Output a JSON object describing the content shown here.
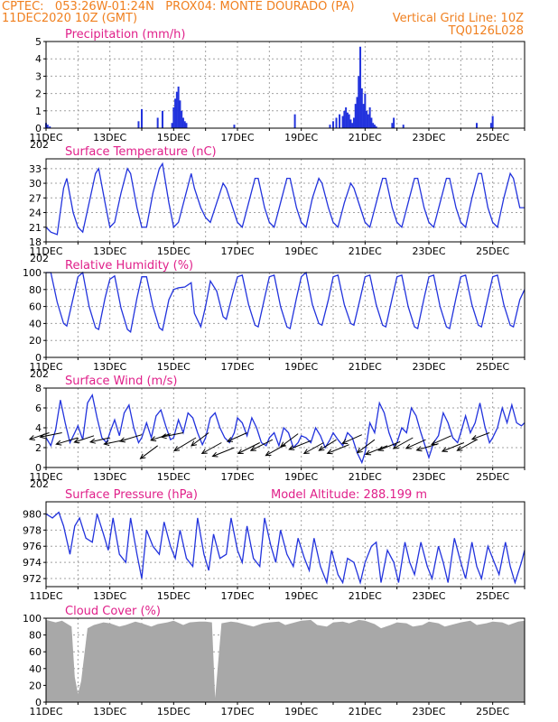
{
  "header": {
    "line1": "CPTEC:   053:26W-01:24N   PROX04: MONTE DOURADO (PA)",
    "line2_left": "11DEC2020 10Z (GMT)",
    "line2_right": "Vertical Grid Line: 10Z",
    "line3_right": "TQ0126L028"
  },
  "colors": {
    "header": "#f08020",
    "title": "#e0208a",
    "series": "#2233dd",
    "cloud": "#a8a8a8",
    "grid": "#a0a0a0"
  },
  "x_labels": [
    "11DEC",
    "13DEC",
    "15DEC",
    "17DEC",
    "19DEC",
    "21DEC",
    "23DEC",
    "25DEC"
  ],
  "year_fragment": "202",
  "chart_data": [
    {
      "type": "bar",
      "title": "Precipitation (mm/h)",
      "ylim": [
        0,
        5
      ],
      "yticks": [
        0,
        1,
        2,
        3,
        4,
        5
      ],
      "x_unit": "days since 11DEC2020 10Z (GMT)",
      "x": [
        0.0,
        0.05,
        0.12,
        2.9,
        3.0,
        3.5,
        3.65,
        3.95,
        4.0,
        4.05,
        4.1,
        4.15,
        4.2,
        4.25,
        4.3,
        4.35,
        4.4,
        5.9,
        7.8,
        8.9,
        9.0,
        9.1,
        9.2,
        9.3,
        9.35,
        9.4,
        9.45,
        9.5,
        9.55,
        9.6,
        9.65,
        9.7,
        9.75,
        9.8,
        9.85,
        9.9,
        9.95,
        10.0,
        10.05,
        10.1,
        10.15,
        10.2,
        10.25,
        10.3,
        10.35,
        10.85,
        10.9,
        11.2,
        13.5,
        13.95,
        14.0
      ],
      "values": [
        0.3,
        0.2,
        0.1,
        0.4,
        1.1,
        0.6,
        1.0,
        0.3,
        1.2,
        1.7,
        2.1,
        2.4,
        1.6,
        1.0,
        0.6,
        0.4,
        0.3,
        0.2,
        0.8,
        0.2,
        0.4,
        0.6,
        0.8,
        0.7,
        1.0,
        1.2,
        0.9,
        0.8,
        0.5,
        0.3,
        0.6,
        1.4,
        1.8,
        3.0,
        4.7,
        2.3,
        1.4,
        2.0,
        1.0,
        0.8,
        1.2,
        0.6,
        0.3,
        0.2,
        0.1,
        0.3,
        0.6,
        0.2,
        0.3,
        0.3,
        0.7
      ]
    },
    {
      "type": "line",
      "title": "Surface Temperature (nC)",
      "ylim": [
        18,
        35
      ],
      "yticks": [
        18,
        21,
        24,
        27,
        30,
        33
      ],
      "x_unit": "days since 11DEC2020 10Z (GMT)",
      "x": [
        0.0,
        0.15,
        0.35,
        0.55,
        0.65,
        0.85,
        1.0,
        1.15,
        1.35,
        1.55,
        1.65,
        1.85,
        2.0,
        2.15,
        2.35,
        2.55,
        2.65,
        2.85,
        3.0,
        3.15,
        3.35,
        3.55,
        3.65,
        3.85,
        4.0,
        4.15,
        4.35,
        4.55,
        4.65,
        4.85,
        5.0,
        5.15,
        5.35,
        5.55,
        5.65,
        5.85,
        6.0,
        6.15,
        6.35,
        6.55,
        6.65,
        6.85,
        7.0,
        7.15,
        7.35,
        7.55,
        7.65,
        7.85,
        8.0,
        8.15,
        8.35,
        8.55,
        8.65,
        8.85,
        9.0,
        9.15,
        9.35,
        9.55,
        9.65,
        9.85,
        10.0,
        10.15,
        10.35,
        10.55,
        10.65,
        10.85,
        11.0,
        11.15,
        11.35,
        11.55,
        11.65,
        11.85,
        12.0,
        12.15,
        12.35,
        12.55,
        12.65,
        12.85,
        13.0,
        13.15,
        13.35,
        13.55,
        13.65,
        13.85,
        14.0,
        14.15,
        14.35,
        14.55,
        14.65,
        14.85,
        15.0
      ],
      "values": [
        21,
        20,
        19.5,
        29,
        31,
        24,
        21,
        20,
        26,
        32,
        33,
        26,
        21,
        22,
        28,
        33,
        32,
        25,
        21,
        21,
        28,
        33,
        34,
        26,
        21,
        22,
        27,
        32,
        29,
        25,
        23,
        22,
        26,
        30,
        29,
        25,
        22,
        21,
        26,
        31,
        31,
        25,
        22,
        21,
        26,
        31,
        31,
        25,
        22,
        21,
        27,
        31,
        30,
        25,
        22,
        21,
        26,
        30,
        29,
        25,
        22,
        21,
        26,
        31,
        31,
        25,
        22,
        21,
        26,
        31,
        31,
        25,
        22,
        21,
        26,
        31,
        31,
        25,
        22,
        21,
        27,
        32,
        32,
        25,
        22,
        21,
        27,
        32,
        31,
        25,
        25
      ]
    },
    {
      "type": "line",
      "title": "Relative Humidity (%)",
      "ylim": [
        0,
        100
      ],
      "yticks": [
        0,
        20,
        40,
        60,
        80,
        100
      ],
      "x_unit": "days since 11DEC2020 10Z (GMT)",
      "x": [
        0.0,
        0.15,
        0.35,
        0.55,
        0.65,
        0.85,
        1.0,
        1.15,
        1.35,
        1.55,
        1.65,
        1.85,
        2.0,
        2.15,
        2.35,
        2.55,
        2.65,
        2.85,
        3.0,
        3.15,
        3.35,
        3.55,
        3.65,
        3.85,
        4.0,
        4.15,
        4.35,
        4.55,
        4.65,
        4.85,
        5.0,
        5.15,
        5.35,
        5.55,
        5.65,
        5.85,
        6.0,
        6.15,
        6.35,
        6.55,
        6.65,
        6.85,
        7.0,
        7.15,
        7.35,
        7.55,
        7.65,
        7.85,
        8.0,
        8.15,
        8.35,
        8.55,
        8.65,
        8.85,
        9.0,
        9.15,
        9.35,
        9.55,
        9.65,
        9.85,
        10.0,
        10.15,
        10.35,
        10.55,
        10.65,
        10.85,
        11.0,
        11.15,
        11.35,
        11.55,
        11.65,
        11.85,
        12.0,
        12.15,
        12.35,
        12.55,
        12.65,
        12.85,
        13.0,
        13.15,
        13.35,
        13.55,
        13.65,
        13.85,
        14.0,
        14.15,
        14.35,
        14.55,
        14.65,
        14.85,
        15.0
      ],
      "values": [
        100,
        100,
        65,
        40,
        37,
        70,
        95,
        100,
        60,
        35,
        33,
        70,
        92,
        96,
        58,
        33,
        30,
        70,
        95,
        95,
        60,
        35,
        32,
        68,
        80,
        82,
        83,
        88,
        52,
        36,
        60,
        90,
        78,
        48,
        45,
        75,
        95,
        97,
        62,
        38,
        36,
        70,
        95,
        97,
        60,
        36,
        34,
        70,
        95,
        100,
        62,
        40,
        38,
        68,
        95,
        97,
        62,
        40,
        38,
        70,
        95,
        97,
        62,
        38,
        36,
        70,
        95,
        97,
        60,
        36,
        34,
        70,
        95,
        97,
        60,
        36,
        34,
        70,
        95,
        97,
        62,
        38,
        36,
        70,
        95,
        97,
        62,
        38,
        36,
        68,
        80
      ]
    },
    {
      "type": "line",
      "title": "Surface Wind (m/s)",
      "ylim": [
        0,
        8
      ],
      "yticks": [
        0,
        2,
        4,
        6,
        8
      ],
      "x_unit": "days since 11DEC2020 10Z (GMT)",
      "x": [
        0.0,
        0.15,
        0.3,
        0.45,
        0.6,
        0.75,
        0.9,
        1.0,
        1.15,
        1.3,
        1.45,
        1.6,
        1.75,
        1.9,
        2.0,
        2.15,
        2.3,
        2.45,
        2.6,
        2.75,
        2.9,
        3.0,
        3.15,
        3.3,
        3.45,
        3.6,
        3.75,
        3.9,
        4.0,
        4.15,
        4.3,
        4.45,
        4.6,
        4.75,
        4.9,
        5.0,
        5.15,
        5.3,
        5.45,
        5.6,
        5.75,
        5.9,
        6.0,
        6.15,
        6.3,
        6.45,
        6.6,
        6.75,
        6.9,
        7.0,
        7.15,
        7.3,
        7.45,
        7.6,
        7.75,
        7.9,
        8.0,
        8.15,
        8.3,
        8.45,
        8.6,
        8.75,
        8.9,
        9.0,
        9.15,
        9.3,
        9.45,
        9.6,
        9.75,
        9.9,
        10.0,
        10.15,
        10.3,
        10.45,
        10.6,
        10.75,
        10.9,
        11.0,
        11.15,
        11.3,
        11.45,
        11.6,
        11.75,
        11.9,
        12.0,
        12.15,
        12.3,
        12.45,
        12.6,
        12.75,
        12.9,
        13.0,
        13.15,
        13.3,
        13.45,
        13.6,
        13.75,
        13.9,
        14.0,
        14.15,
        14.3,
        14.45,
        14.6,
        14.75,
        14.9,
        15.0
      ],
      "values": [
        3.0,
        2.2,
        3.8,
        6.8,
        4.5,
        2.5,
        3.5,
        4.2,
        2.8,
        6.5,
        7.3,
        5.0,
        3.0,
        2.5,
        3.5,
        4.8,
        3.2,
        5.5,
        6.3,
        4.0,
        2.5,
        3.0,
        4.5,
        3.0,
        5.2,
        5.8,
        4.2,
        2.8,
        3.0,
        4.8,
        3.5,
        5.5,
        5.0,
        3.5,
        2.3,
        3.0,
        5.0,
        5.5,
        4.0,
        3.0,
        2.5,
        3.5,
        5.0,
        4.5,
        3.2,
        5.0,
        4.0,
        2.5,
        2.2,
        3.0,
        3.5,
        2.2,
        4.0,
        3.5,
        2.0,
        2.5,
        3.2,
        3.0,
        2.5,
        4.0,
        3.2,
        2.0,
        2.8,
        3.5,
        2.8,
        2.2,
        3.5,
        3.0,
        1.5,
        0.5,
        1.5,
        4.5,
        3.5,
        6.5,
        5.5,
        3.5,
        2.2,
        2.5,
        4.0,
        3.5,
        6.0,
        5.2,
        3.5,
        2.0,
        1.0,
        2.5,
        3.2,
        5.5,
        4.5,
        3.0,
        2.5,
        3.5,
        5.2,
        3.5,
        4.5,
        6.5,
        4.2,
        2.5,
        3.0,
        4.0,
        6.0,
        4.5,
        6.3,
        4.5,
        4.2,
        4.5
      ],
      "arrows": {
        "x": [
          0.1,
          0.5,
          1.0,
          1.5,
          2.0,
          2.5,
          3.0,
          3.5,
          3.9,
          4.3,
          4.7,
          5.1,
          5.5,
          5.9,
          6.3,
          6.7,
          7.1,
          7.5,
          7.9,
          8.3,
          8.7,
          9.1,
          9.5,
          9.9,
          10.3,
          10.7,
          11.1,
          11.5,
          11.9,
          12.3,
          12.7,
          13.1,
          13.5,
          13.9
        ],
        "y": [
          3.5,
          3.5,
          3.0,
          3.2,
          3.0,
          2.8,
          3.3,
          2.2,
          3.4,
          3.5,
          3.0,
          3.5,
          2.5,
          2.0,
          3.5,
          2.5,
          2.8,
          2.3,
          3.4,
          2.7,
          2.5,
          2.8,
          2.3,
          3.3,
          2.8,
          2.2,
          2.6,
          3.0,
          2.8,
          2.4,
          3.2,
          2.5,
          2.8,
          3.5
        ],
        "u": [
          -0.9,
          -1.0,
          -1.0,
          -0.9,
          -0.9,
          -1.0,
          -1.0,
          -0.8,
          -0.9,
          -1.0,
          -1.0,
          -0.8,
          -0.9,
          -1.0,
          -0.9,
          -1.0,
          -1.0,
          -0.9,
          -0.8,
          -1.0,
          -0.9,
          -0.8,
          -1.0,
          -0.9,
          -0.8,
          -1.0,
          -1.0,
          -0.9,
          -0.9,
          -1.0,
          -0.9,
          -1.0,
          -0.9,
          -0.8
        ],
        "v": [
          -0.3,
          -0.2,
          -0.3,
          -0.3,
          -0.2,
          -0.2,
          -0.3,
          -0.6,
          -0.3,
          -0.2,
          -0.6,
          -0.6,
          -0.5,
          -0.4,
          -0.4,
          -0.5,
          -0.5,
          -0.5,
          -0.6,
          -0.4,
          -0.5,
          -0.5,
          -0.4,
          -0.4,
          -0.6,
          -0.4,
          -0.4,
          -0.5,
          -0.4,
          -0.3,
          -0.4,
          -0.4,
          -0.5,
          -0.3
        ]
      }
    },
    {
      "type": "line",
      "title": "Surface Pressure (hPa)",
      "annotation": "Model Altitude: 288.199 m",
      "ylim": [
        971,
        981.5
      ],
      "yticks": [
        972,
        974,
        976,
        978,
        980
      ],
      "x_unit": "days since 11DEC2020 10Z (GMT)",
      "x": [
        0.0,
        0.2,
        0.4,
        0.55,
        0.75,
        0.9,
        1.05,
        1.25,
        1.45,
        1.6,
        1.8,
        1.95,
        2.1,
        2.3,
        2.5,
        2.65,
        2.85,
        3.0,
        3.15,
        3.35,
        3.55,
        3.7,
        3.9,
        4.05,
        4.2,
        4.4,
        4.6,
        4.75,
        4.95,
        5.1,
        5.25,
        5.45,
        5.65,
        5.8,
        6.0,
        6.15,
        6.3,
        6.5,
        6.7,
        6.85,
        7.05,
        7.2,
        7.35,
        7.55,
        7.75,
        7.9,
        8.1,
        8.25,
        8.4,
        8.6,
        8.8,
        8.95,
        9.15,
        9.3,
        9.45,
        9.65,
        9.85,
        10.0,
        10.2,
        10.35,
        10.5,
        10.7,
        10.9,
        11.05,
        11.25,
        11.4,
        11.55,
        11.75,
        11.95,
        12.1,
        12.3,
        12.45,
        12.6,
        12.8,
        13.0,
        13.15,
        13.35,
        13.5,
        13.65,
        13.85,
        14.05,
        14.2,
        14.4,
        14.55,
        14.7,
        14.9,
        15.0
      ],
      "values": [
        980,
        979.5,
        980.2,
        978.5,
        975,
        978.5,
        979.5,
        977,
        976.5,
        980,
        977.5,
        975.5,
        979.5,
        975,
        974,
        979.5,
        975,
        972,
        978,
        976,
        975,
        979,
        976,
        974.5,
        978,
        974.5,
        973.5,
        979.5,
        975,
        973,
        977.5,
        974.5,
        975,
        979.5,
        975.5,
        974,
        978.5,
        974.5,
        973.5,
        979.5,
        976,
        974,
        978,
        975,
        973.5,
        977,
        974.5,
        973,
        977,
        973.5,
        971.5,
        975.5,
        972.5,
        971.5,
        974.5,
        974,
        971.5,
        974,
        976,
        976.5,
        971.5,
        975.5,
        974,
        971.5,
        976.5,
        974,
        972.5,
        976.5,
        973.5,
        972,
        976,
        974,
        971.5,
        977,
        974,
        972,
        976.5,
        973.5,
        972,
        976,
        974,
        972.5,
        976.5,
        973.5,
        971.5,
        974,
        975.5
      ]
    },
    {
      "type": "area",
      "title": "Cloud Cover (%)",
      "ylim": [
        0,
        100
      ],
      "yticks": [
        0,
        20,
        40,
        60,
        80,
        100
      ],
      "x_unit": "days since 11DEC2020 10Z (GMT)",
      "x": [
        0.0,
        0.3,
        0.5,
        0.8,
        0.9,
        1.0,
        1.1,
        1.3,
        1.5,
        1.8,
        2.0,
        2.3,
        2.5,
        2.8,
        3.0,
        3.3,
        3.5,
        3.8,
        4.0,
        4.3,
        4.5,
        4.8,
        5.0,
        5.2,
        5.3,
        5.5,
        5.8,
        6.0,
        6.3,
        6.5,
        6.8,
        7.0,
        7.3,
        7.5,
        7.8,
        8.0,
        8.3,
        8.5,
        8.8,
        9.0,
        9.3,
        9.5,
        9.8,
        10.0,
        10.3,
        10.5,
        10.8,
        11.0,
        11.3,
        11.5,
        11.8,
        12.0,
        12.3,
        12.5,
        12.8,
        13.0,
        13.3,
        13.5,
        13.8,
        14.0,
        14.3,
        14.5,
        14.8,
        15.0
      ],
      "values": [
        98,
        95,
        97,
        90,
        30,
        10,
        25,
        88,
        92,
        95,
        94,
        90,
        92,
        96,
        94,
        90,
        93,
        95,
        97,
        92,
        95,
        96,
        96,
        95,
        5,
        94,
        96,
        95,
        92,
        90,
        94,
        95,
        96,
        92,
        95,
        97,
        98,
        92,
        90,
        95,
        96,
        94,
        98,
        97,
        93,
        88,
        92,
        95,
        94,
        90,
        92,
        96,
        94,
        90,
        93,
        95,
        97,
        92,
        94,
        96,
        95,
        92,
        96,
        97
      ]
    }
  ]
}
